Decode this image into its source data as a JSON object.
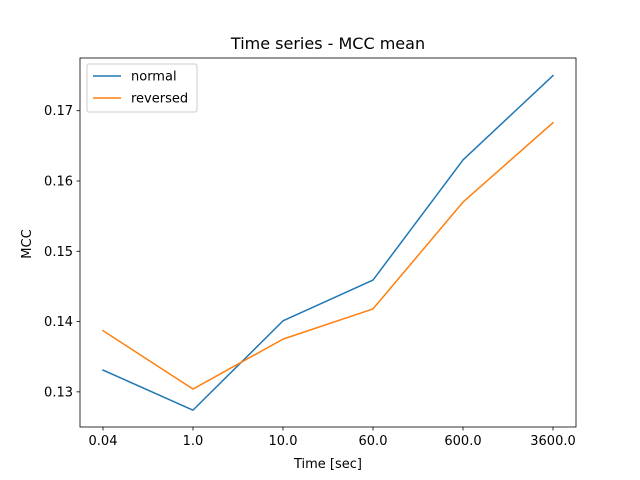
{
  "chart_data": {
    "type": "line",
    "title": "Time series - MCC mean",
    "xlabel": "Time [sec]",
    "ylabel": "MCC",
    "categories": [
      "0.04",
      "1.0",
      "10.0",
      "60.0",
      "600.0",
      "3600.0"
    ],
    "yticks": [
      "0.13",
      "0.14",
      "0.15",
      "0.16",
      "0.17"
    ],
    "ylim": [
      0.125,
      0.1775
    ],
    "grid": false,
    "legend_position": "top-left",
    "series": [
      {
        "name": "normal",
        "color": "#1f77b4",
        "values": [
          0.1331,
          0.1274,
          0.1401,
          0.1459,
          0.163,
          0.175
        ]
      },
      {
        "name": "reversed",
        "color": "#ff7f0e",
        "values": [
          0.1387,
          0.1304,
          0.1375,
          0.1418,
          0.157,
          0.1683
        ]
      }
    ]
  }
}
